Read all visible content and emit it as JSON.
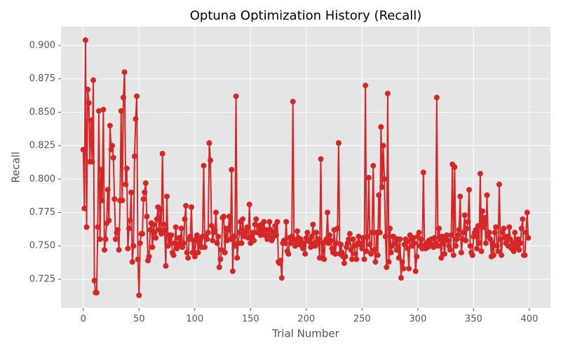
{
  "chart_data": {
    "type": "line",
    "title": "Optuna Optimization History (Recall)",
    "x_label": "Trial Number",
    "y_label": "Recall",
    "xlim": [
      -19.95,
      418.95
    ],
    "ylim": [
      0.7035,
      0.9141
    ],
    "xticks": [
      0,
      50,
      100,
      150,
      200,
      250,
      300,
      350,
      400
    ],
    "yticks": [
      0.725,
      {
        "value": 0.75,
        "label": "0.750"
      },
      0.775,
      {
        "value": 0.8,
        "label": "0.800"
      },
      0.825,
      {
        "value": 0.85,
        "label": "0.850"
      },
      0.875,
      {
        "value": 0.9,
        "label": "0.900"
      }
    ],
    "grid": true,
    "series": [
      {
        "color": "#d62728",
        "x": [
          0,
          1,
          2,
          3,
          4,
          5,
          6,
          7,
          8,
          9,
          10,
          11,
          12,
          13,
          14,
          15,
          16,
          17,
          18,
          19,
          20,
          21,
          22,
          23,
          24,
          25,
          26,
          27,
          28,
          29,
          30,
          31,
          32,
          33,
          34,
          35,
          36,
          37,
          38,
          39,
          40,
          41,
          42,
          43,
          44,
          45,
          46,
          47,
          48,
          49,
          50,
          51,
          52,
          53,
          54,
          55,
          56,
          57,
          58,
          59,
          60,
          61,
          62,
          63,
          64,
          65,
          66,
          67,
          68,
          69,
          70,
          71,
          72,
          73,
          74,
          75,
          76,
          77,
          78,
          79,
          80,
          81,
          82,
          83,
          84,
          85,
          86,
          87,
          88,
          89,
          90,
          91,
          92,
          93,
          94,
          95,
          96,
          97,
          98,
          99,
          100,
          101,
          102,
          103,
          104,
          105,
          106,
          107,
          108,
          109,
          110,
          111,
          112,
          113,
          114,
          115,
          116,
          117,
          118,
          119,
          120,
          121,
          122,
          123,
          124,
          125,
          126,
          127,
          128,
          129,
          130,
          131,
          132,
          133,
          134,
          135,
          136,
          137,
          138,
          139,
          140,
          141,
          142,
          143,
          144,
          145,
          146,
          147,
          148,
          149,
          150,
          151,
          152,
          153,
          154,
          155,
          156,
          157,
          158,
          159,
          160,
          161,
          162,
          163,
          164,
          165,
          166,
          167,
          168,
          169,
          170,
          171,
          172,
          173,
          174,
          175,
          176,
          177,
          178,
          179,
          180,
          181,
          182,
          183,
          184,
          185,
          186,
          187,
          188,
          189,
          190,
          191,
          192,
          193,
          194,
          195,
          196,
          197,
          198,
          199,
          200,
          201,
          202,
          203,
          204,
          205,
          206,
          207,
          208,
          209,
          210,
          211,
          212,
          213,
          214,
          215,
          216,
          217,
          218,
          219,
          220,
          221,
          222,
          223,
          224,
          225,
          226,
          227,
          228,
          229,
          230,
          231,
          232,
          233,
          234,
          235,
          236,
          237,
          238,
          239,
          240,
          241,
          242,
          243,
          244,
          245,
          246,
          247,
          248,
          249,
          250,
          251,
          252,
          253,
          254,
          255,
          256,
          257,
          258,
          259,
          260,
          261,
          262,
          263,
          264,
          265,
          266,
          267,
          268,
          269,
          270,
          271,
          272,
          273,
          274,
          275,
          276,
          277,
          278,
          279,
          280,
          281,
          282,
          283,
          284,
          285,
          286,
          287,
          288,
          289,
          290,
          291,
          292,
          293,
          294,
          295,
          296,
          297,
          298,
          299,
          300,
          301,
          302,
          303,
          304,
          305,
          306,
          307,
          308,
          309,
          310,
          311,
          312,
          313,
          314,
          315,
          316,
          317,
          318,
          319,
          320,
          321,
          322,
          323,
          324,
          325,
          326,
          327,
          328,
          329,
          330,
          331,
          332,
          333,
          334,
          335,
          336,
          337,
          338,
          339,
          340,
          341,
          342,
          343,
          344,
          345,
          346,
          347,
          348,
          349,
          350,
          351,
          352,
          353,
          354,
          355,
          356,
          357,
          358,
          359,
          360,
          361,
          362,
          363,
          364,
          365,
          366,
          367,
          368,
          369,
          370,
          371,
          372,
          373,
          374,
          375,
          376,
          377,
          378,
          379,
          380,
          381,
          382,
          383,
          384,
          385,
          386,
          387,
          388,
          389,
          390,
          391,
          392,
          393,
          394,
          395,
          396,
          397,
          398,
          399
        ],
        "values": [
          0.822,
          0.778,
          0.904,
          0.764,
          0.867,
          0.857,
          0.813,
          0.844,
          0.813,
          0.874,
          0.724,
          0.715,
          0.715,
          0.764,
          0.851,
          0.755,
          0.807,
          0.784,
          0.852,
          0.747,
          0.755,
          0.767,
          0.792,
          0.769,
          0.84,
          0.822,
          0.825,
          0.816,
          0.785,
          0.755,
          0.76,
          0.762,
          0.747,
          0.784,
          0.851,
          0.784,
          0.861,
          0.88,
          0.796,
          0.808,
          0.748,
          0.763,
          0.769,
          0.79,
          0.738,
          0.75,
          0.817,
          0.845,
          0.862,
          0.74,
          0.713,
          0.752,
          0.759,
          0.759,
          0.785,
          0.79,
          0.797,
          0.772,
          0.739,
          0.742,
          0.762,
          0.767,
          0.749,
          0.766,
          0.76,
          0.756,
          0.77,
          0.779,
          0.762,
          0.777,
          0.759,
          0.819,
          0.766,
          0.762,
          0.735,
          0.787,
          0.75,
          0.758,
          0.752,
          0.758,
          0.745,
          0.743,
          0.752,
          0.764,
          0.748,
          0.751,
          0.756,
          0.75,
          0.763,
          0.749,
          0.752,
          0.77,
          0.78,
          0.745,
          0.741,
          0.755,
          0.757,
          0.779,
          0.745,
          0.754,
          0.742,
          0.755,
          0.758,
          0.745,
          0.752,
          0.755,
          0.749,
          0.757,
          0.81,
          0.749,
          0.757,
          0.755,
          0.76,
          0.827,
          0.814,
          0.765,
          0.754,
          0.76,
          0.762,
          0.775,
          0.752,
          0.757,
          0.734,
          0.74,
          0.747,
          0.771,
          0.772,
          0.745,
          0.763,
          0.754,
          0.762,
          0.772,
          0.755,
          0.807,
          0.731,
          0.757,
          0.75,
          0.862,
          0.741,
          0.752,
          0.76,
          0.768,
          0.752,
          0.77,
          0.758,
          0.757,
          0.761,
          0.764,
          0.756,
          0.781,
          0.752,
          0.757,
          0.76,
          0.754,
          0.766,
          0.77,
          0.76,
          0.765,
          0.762,
          0.758,
          0.766,
          0.76,
          0.768,
          0.758,
          0.762,
          0.755,
          0.758,
          0.768,
          0.762,
          0.754,
          0.756,
          0.76,
          0.765,
          0.758,
          0.768,
          0.738,
          0.737,
          0.739,
          0.726,
          0.752,
          0.754,
          0.752,
          0.768,
          0.746,
          0.744,
          0.756,
          0.752,
          0.757,
          0.858,
          0.755,
          0.75,
          0.753,
          0.761,
          0.756,
          0.751,
          0.755,
          0.75,
          0.748,
          0.752,
          0.744,
          0.756,
          0.76,
          0.754,
          0.753,
          0.749,
          0.757,
          0.766,
          0.752,
          0.75,
          0.76,
          0.752,
          0.755,
          0.741,
          0.815,
          0.741,
          0.752,
          0.74,
          0.753,
          0.755,
          0.775,
          0.752,
          0.758,
          0.754,
          0.748,
          0.745,
          0.762,
          0.744,
          0.752,
          0.763,
          0.827,
          0.744,
          0.751,
          0.745,
          0.742,
          0.737,
          0.742,
          0.749,
          0.752,
          0.755,
          0.759,
          0.747,
          0.74,
          0.755,
          0.75,
          0.744,
          0.74,
          0.752,
          0.757,
          0.751,
          0.752,
          0.748,
          0.756,
          0.74,
          0.87,
          0.746,
          0.757,
          0.801,
          0.751,
          0.744,
          0.76,
          0.81,
          0.747,
          0.738,
          0.76,
          0.743,
          0.788,
          0.76,
          0.839,
          0.794,
          0.825,
          0.8,
          0.757,
          0.734,
          0.864,
          0.738,
          0.763,
          0.745,
          0.75,
          0.757,
          0.756,
          0.752,
          0.747,
          0.755,
          0.741,
          0.755,
          0.726,
          0.738,
          0.733,
          0.751,
          0.755,
          0.753,
          0.748,
          0.733,
          0.758,
          0.755,
          0.75,
          0.756,
          0.752,
          0.731,
          0.742,
          0.757,
          0.76,
          0.75,
          0.755,
          0.748,
          0.805,
          0.75,
          0.748,
          0.752,
          0.749,
          0.754,
          0.752,
          0.755,
          0.75,
          0.749,
          0.756,
          0.752,
          0.861,
          0.75,
          0.763,
          0.755,
          0.741,
          0.757,
          0.752,
          0.744,
          0.755,
          0.758,
          0.754,
          0.75,
          0.747,
          0.758,
          0.811,
          0.743,
          0.809,
          0.75,
          0.755,
          0.758,
          0.762,
          0.787,
          0.745,
          0.755,
          0.76,
          0.773,
          0.754,
          0.763,
          0.768,
          0.792,
          0.75,
          0.745,
          0.743,
          0.757,
          0.76,
          0.762,
          0.748,
          0.765,
          0.752,
          0.804,
          0.746,
          0.776,
          0.764,
          0.771,
          0.752,
          0.788,
          0.757,
          0.76,
          0.755,
          0.742,
          0.752,
          0.743,
          0.76,
          0.764,
          0.75,
          0.746,
          0.796,
          0.755,
          0.743,
          0.76,
          0.763,
          0.756,
          0.752,
          0.757,
          0.75,
          0.764,
          0.755,
          0.748,
          0.752,
          0.746,
          0.76,
          0.752,
          0.749,
          0.755,
          0.747,
          0.752,
          0.763,
          0.77,
          0.743,
          0.743,
          0.76,
          0.775,
          0.756
        ]
      }
    ]
  }
}
